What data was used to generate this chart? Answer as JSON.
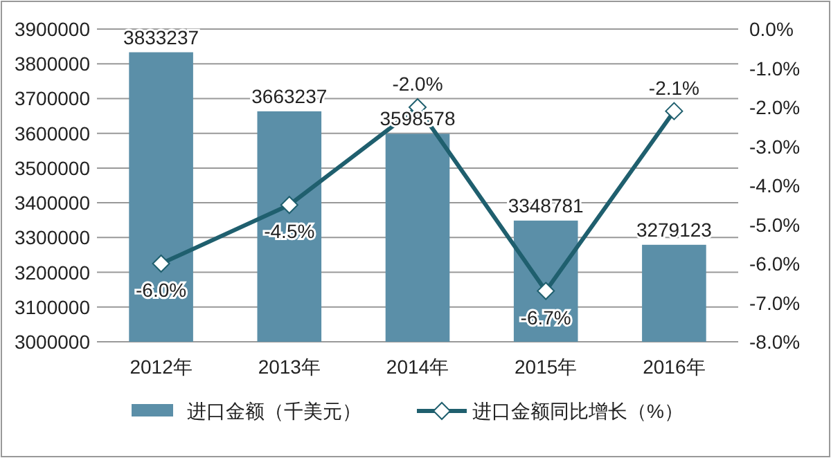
{
  "chart_data": {
    "type": "bar",
    "categories": [
      "2012年",
      "2013年",
      "2014年",
      "2015年",
      "2016年"
    ],
    "series": [
      {
        "name": "进口金额（千美元）",
        "color": "#5b8fa8",
        "values": [
          3833237,
          3663237,
          3598578,
          3348781,
          3279123
        ],
        "value_labels": [
          "3833237",
          "3663237",
          "3598578",
          "3348781",
          "3279123"
        ]
      },
      {
        "name": "进口金额同比增长（%）",
        "type": "line",
        "axis": "y2",
        "color": "#1f5f6e",
        "marker": "diamond",
        "values": [
          -6.0,
          -4.5,
          -2.0,
          -6.7,
          -2.1
        ],
        "value_labels": [
          "-6.0%",
          "-4.5%",
          "-2.0%",
          "-6.7%",
          "-2.1%"
        ]
      }
    ],
    "ylim": [
      3000000,
      3900000
    ],
    "yticks": [
      3000000,
      3100000,
      3200000,
      3300000,
      3400000,
      3500000,
      3600000,
      3700000,
      3800000,
      3900000
    ],
    "y2lim": [
      -8,
      0
    ],
    "y2ticks": [
      {
        "value": -8,
        "label": "-8.0%"
      },
      {
        "value": -7,
        "label": "-7.0%"
      },
      {
        "value": -6,
        "label": "-6.0%"
      },
      {
        "value": -5,
        "label": "-5.0%"
      },
      {
        "value": -4,
        "label": "-4.0%"
      },
      {
        "value": -3,
        "label": "-3.0%"
      },
      {
        "value": -2,
        "label": "-2.0%"
      },
      {
        "value": -1,
        "label": "-1.0%"
      },
      {
        "value": 0,
        "label": "0.0%"
      }
    ],
    "grid": "y",
    "legend": "bottom"
  }
}
